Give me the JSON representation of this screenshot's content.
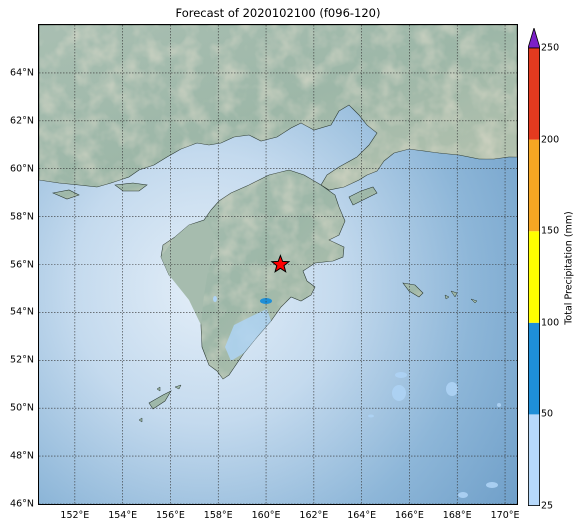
{
  "title": "Forecast of 2020102100 (f096-120)",
  "map": {
    "lon_range": [
      150.5,
      170.5
    ],
    "lat_range": [
      46,
      66
    ],
    "lat_ticks": [
      "46°N",
      "48°N",
      "50°N",
      "52°N",
      "54°N",
      "56°N",
      "58°N",
      "60°N",
      "62°N",
      "64°N"
    ],
    "lat_values": [
      46,
      48,
      50,
      52,
      54,
      56,
      58,
      60,
      62,
      64
    ],
    "lon_ticks": [
      "152°E",
      "154°E",
      "156°E",
      "158°E",
      "160°E",
      "162°E",
      "164°E",
      "166°E",
      "168°E",
      "170°E"
    ],
    "lon_values": [
      152,
      154,
      156,
      158,
      160,
      162,
      164,
      166,
      168,
      170
    ],
    "grid": true,
    "marker": {
      "type": "star",
      "lon": 160.6,
      "lat": 56.0,
      "color": "#ff0000"
    }
  },
  "colorbar": {
    "label": "Total Precipitation (mm)",
    "ticks": [
      "25",
      "50",
      "100",
      "150",
      "200",
      "250"
    ],
    "colors": [
      "#b7d9fb",
      "#1e8fd8",
      "#ffff00",
      "#f5a623",
      "#e33a1f"
    ],
    "extend_color": "#7b20c8",
    "placement": "right"
  }
}
